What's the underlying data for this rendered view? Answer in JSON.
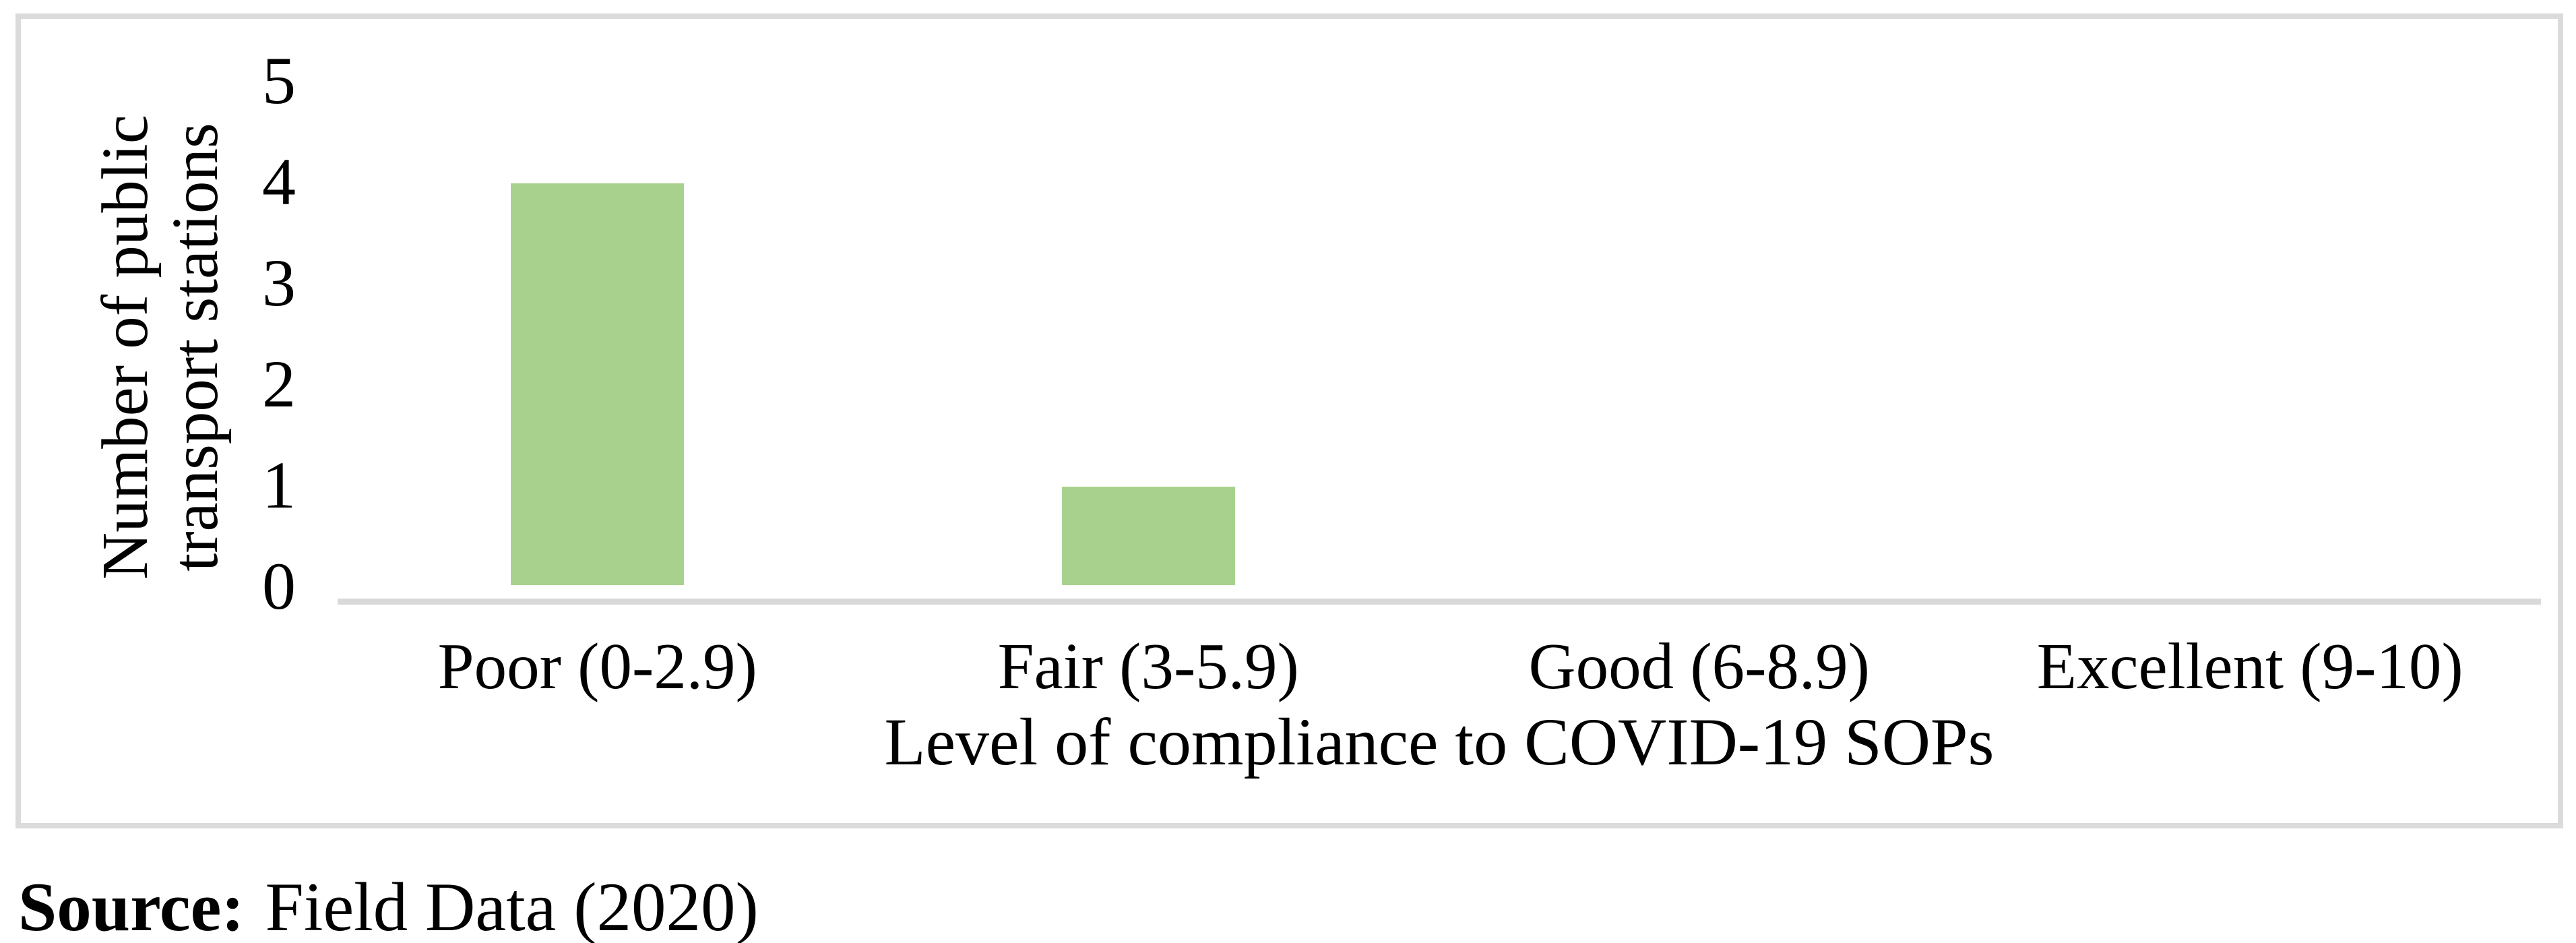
{
  "chart_data": {
    "type": "bar",
    "title": "",
    "categories": [
      "Poor (0-2.9)",
      "Fair (3-5.9)",
      "Good (6-8.9)",
      "Excellent (9-10)"
    ],
    "values": [
      4,
      1,
      0,
      0
    ],
    "xlabel": "Level of compliance to COVID-19 SOPs",
    "ylabel": "Number of public transport stations",
    "ylabel_lines": [
      "Number of public",
      "transport stations"
    ],
    "yticks": [
      0,
      1,
      2,
      3,
      4,
      5
    ],
    "ylim": [
      0,
      5
    ],
    "grid": false,
    "legend": "none",
    "bar_color": "#a9d18e",
    "axis_line_color": "#d9d9d9",
    "frame_border_color": "#dbdbdb"
  },
  "source_note": {
    "label": "Source:",
    "text": "Field Data (2020)"
  }
}
